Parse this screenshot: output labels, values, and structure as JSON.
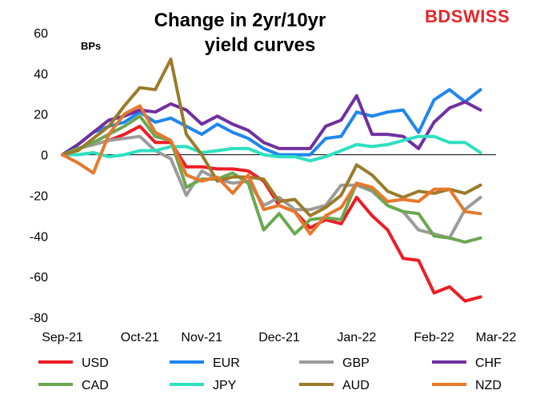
{
  "brand": {
    "text": "BDSWISS",
    "color": "#e3262b"
  },
  "chart_data": {
    "type": "line",
    "title_lines": [
      "Change in 2yr/10yr",
      "yield curves"
    ],
    "unit_label": "BPs",
    "xlabel": "",
    "ylabel": "",
    "ylim": [
      -80,
      60
    ],
    "yticks": [
      "60",
      "40",
      "20",
      "0",
      "-20",
      "-40",
      "-60",
      "-80"
    ],
    "ytick_values": [
      60,
      40,
      20,
      0,
      -20,
      -40,
      -60,
      -80
    ],
    "xticks": [
      "Sep-21",
      "Oct-21",
      "Nov-21",
      "Dec-21",
      "Jan-22",
      "Feb-22",
      "Mar-22"
    ],
    "x_count": 29,
    "xtick_indices": [
      0,
      5,
      9,
      14,
      19,
      24,
      28
    ],
    "grid": false,
    "legend_position": "bottom",
    "series": [
      {
        "name": "USD",
        "color": "#ee1c25",
        "values": [
          0,
          3,
          5,
          7,
          10,
          14,
          6,
          6,
          -6,
          -6,
          -7,
          -7,
          -8,
          -13,
          -25,
          -28,
          -36,
          -32,
          -34,
          -21,
          -30,
          -37,
          -51,
          -52,
          -68,
          -65,
          -72,
          -70,
          null
        ]
      },
      {
        "name": "EUR",
        "color": "#1f86ee",
        "values": [
          0,
          5,
          11,
          14,
          16,
          21,
          16,
          18,
          14,
          10,
          15,
          11,
          8,
          3,
          0,
          0,
          0,
          8,
          9,
          21,
          19,
          21,
          22,
          11,
          27,
          32,
          26,
          32,
          null
        ]
      },
      {
        "name": "GBP",
        "color": "#9b9b9b",
        "values": [
          0,
          3,
          5,
          7,
          8,
          9,
          2,
          -2,
          -20,
          -8,
          -12,
          -14,
          -13,
          -25,
          -21,
          -27,
          -27,
          -25,
          -15,
          -15,
          -18,
          -25,
          -28,
          -37,
          -39,
          -41,
          -27,
          -21,
          null
        ]
      },
      {
        "name": "CHF",
        "color": "#7030a0",
        "values": [
          0,
          5,
          11,
          17,
          19,
          22,
          21,
          25,
          22,
          15,
          19,
          15,
          12,
          6,
          3,
          3,
          3,
          14,
          17,
          29,
          10,
          10,
          9,
          3,
          16,
          23,
          26,
          22,
          null
        ]
      },
      {
        "name": "CAD",
        "color": "#6aa84f",
        "values": [
          0,
          3,
          6,
          10,
          14,
          19,
          9,
          7,
          -16,
          -12,
          -12,
          -9,
          -14,
          -37,
          -29,
          -39,
          -32,
          -31,
          -32,
          -14,
          -17,
          -25,
          -28,
          -29,
          -40,
          -41,
          -43,
          -41,
          null
        ]
      },
      {
        "name": "JPY",
        "color": "#2ee0c0",
        "values": [
          0,
          0,
          1,
          -1,
          0,
          2,
          2,
          4,
          4,
          1,
          2,
          3,
          3,
          0,
          -1,
          -1,
          -3,
          -1,
          2,
          5,
          4,
          5,
          7,
          9,
          9,
          6,
          6,
          1,
          null
        ]
      },
      {
        "name": "AUD",
        "color": "#9a7b29",
        "values": [
          0,
          2,
          8,
          14,
          24,
          33,
          32,
          47,
          10,
          0,
          -13,
          -11,
          -11,
          -12,
          -23,
          -22,
          -30,
          -26,
          -20,
          -5,
          -10,
          -18,
          -21,
          -18,
          -19,
          -17,
          -19,
          -15,
          null
        ]
      },
      {
        "name": "NZD",
        "color": "#e6782d",
        "values": [
          0,
          -4,
          -9,
          10,
          20,
          24,
          11,
          7,
          -10,
          -13,
          -11,
          -19,
          -10,
          -27,
          -25,
          -28,
          -39,
          -30,
          -26,
          -14,
          -16,
          -23,
          -22,
          -23,
          -17,
          -17,
          -28,
          -29,
          null
        ]
      }
    ]
  }
}
